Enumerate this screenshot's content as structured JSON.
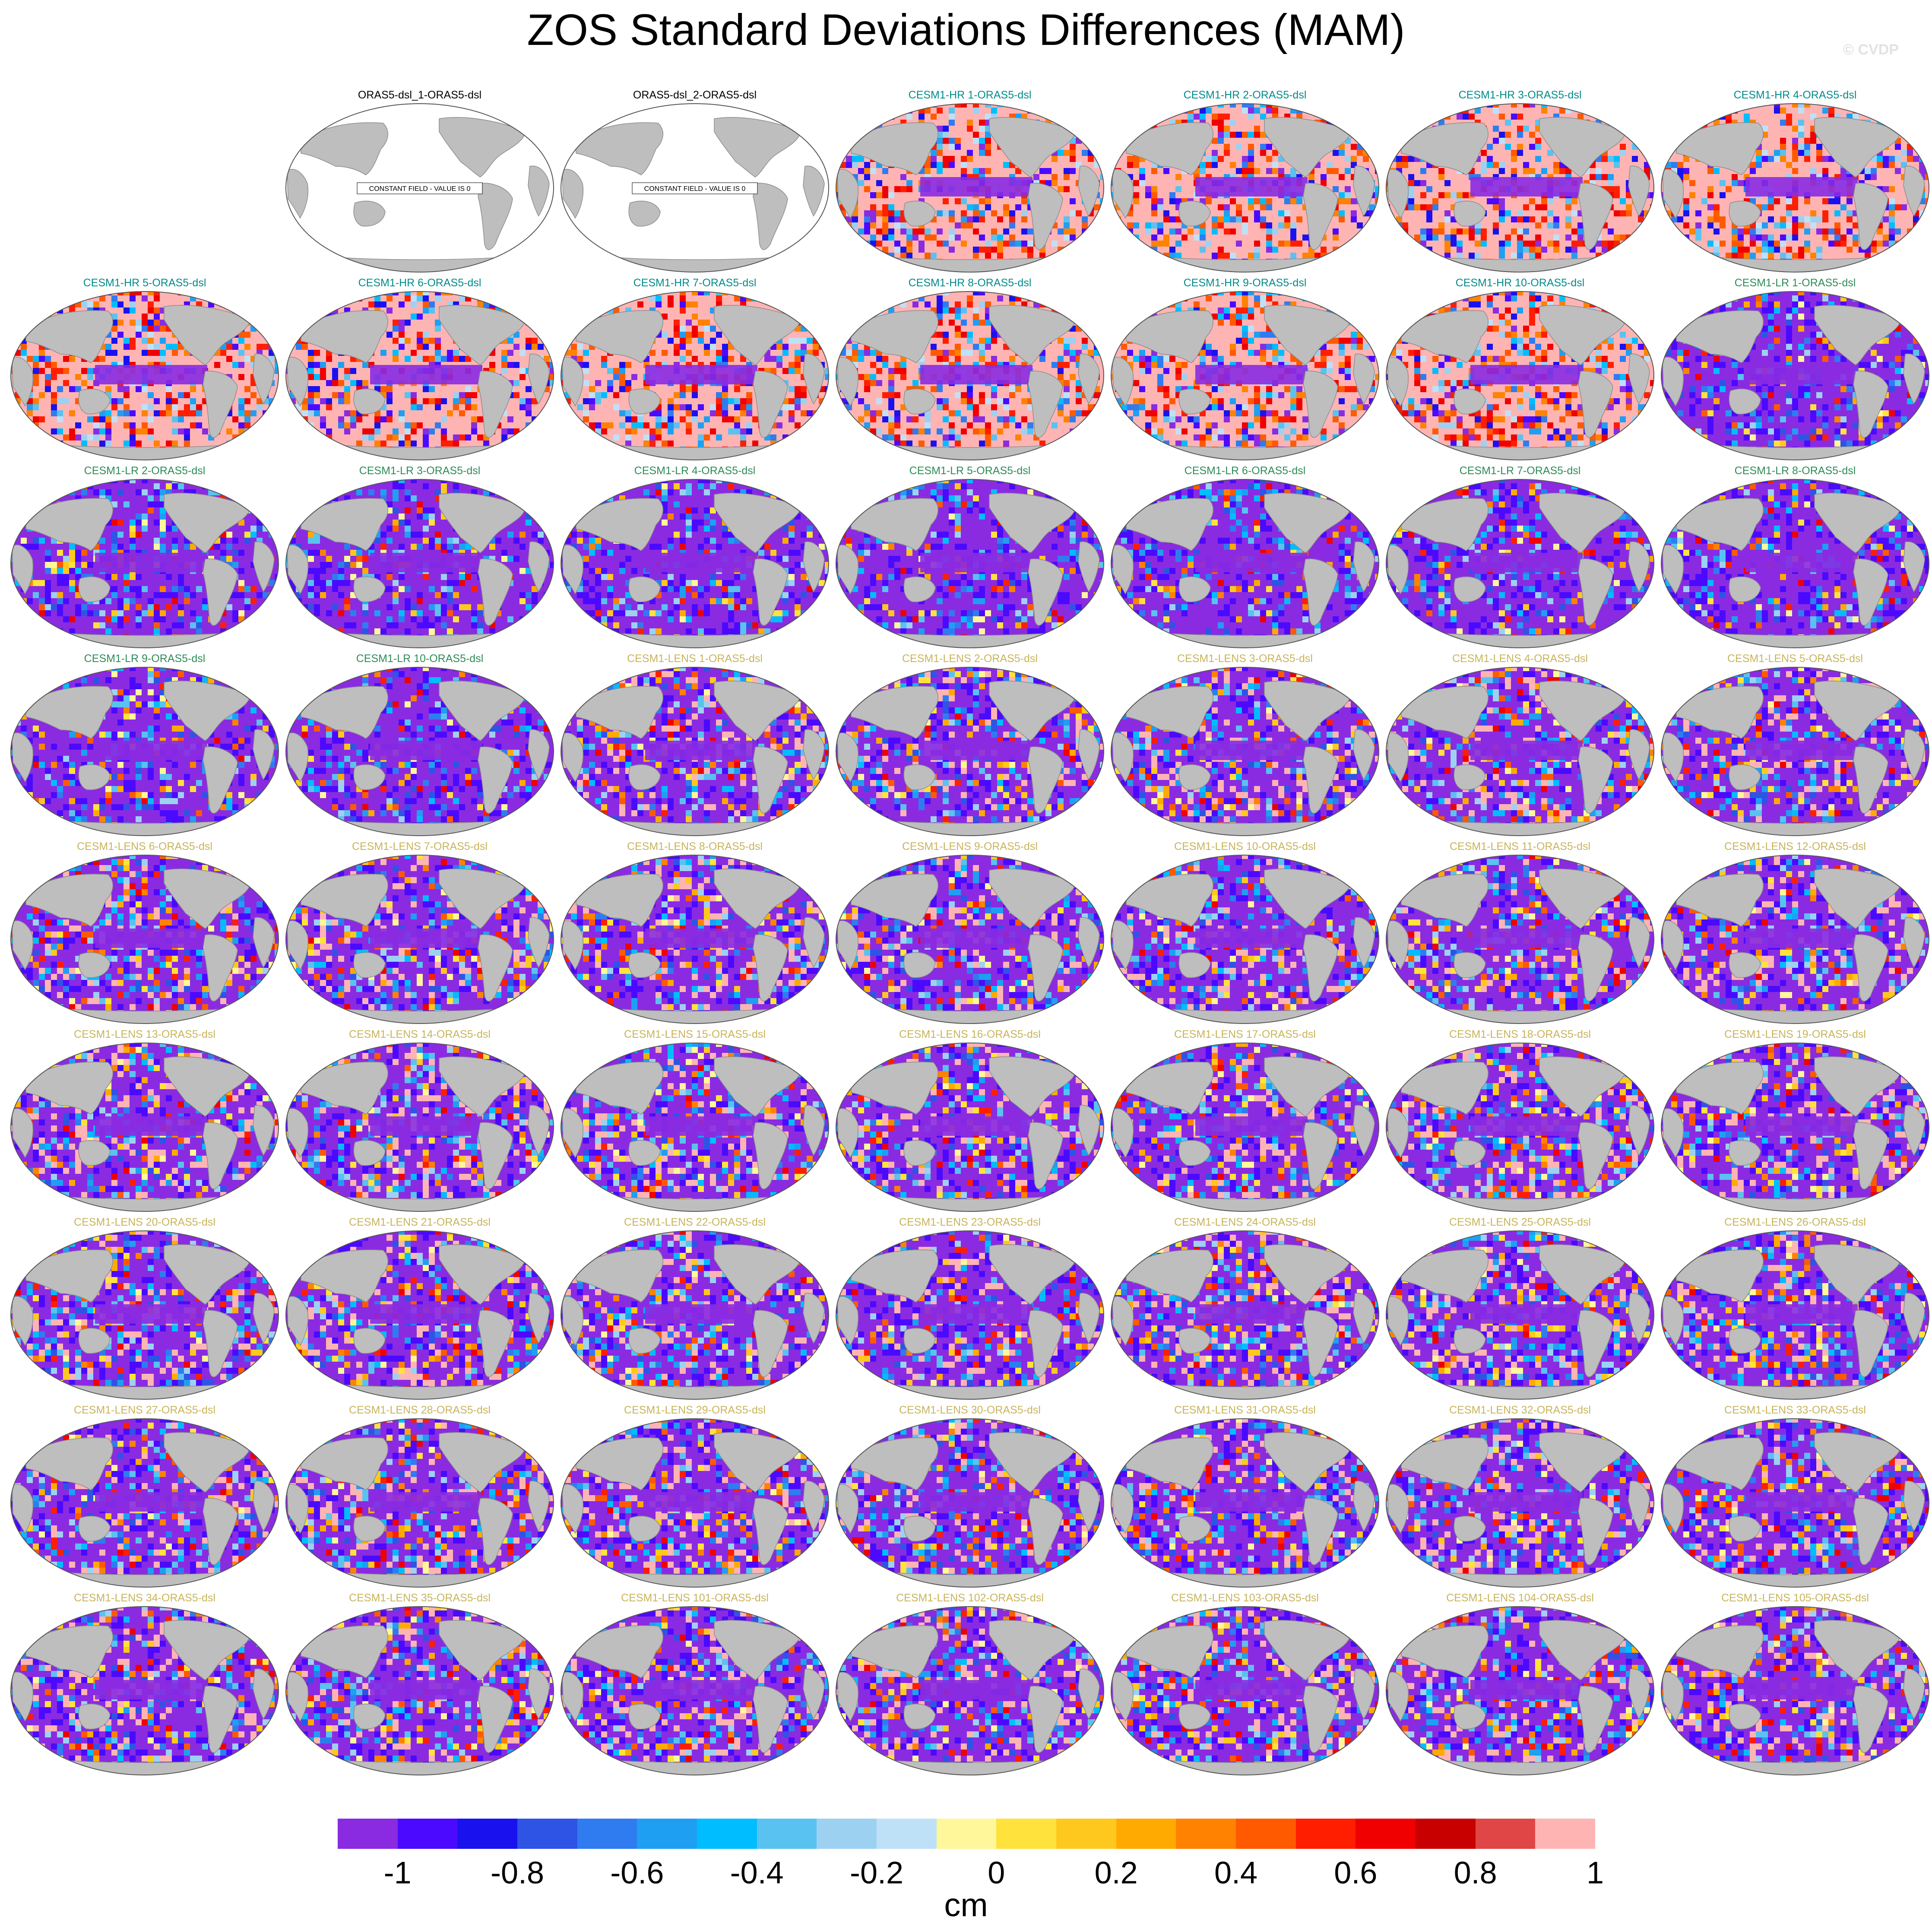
{
  "title": "ZOS Standard Deviations Differences (MAM)",
  "watermark": "© CVDP",
  "constant_field_note": "CONSTANT FIELD - VALUE IS 0",
  "colors": {
    "ocean_null": "#ffffff",
    "land": "#bebebe",
    "title_obs": "#000000",
    "title_hr": "#008b8b",
    "title_lr": "#2e8b57",
    "title_lens": "#c8b45a"
  },
  "colorbar": {
    "units": "cm",
    "boxes": [
      "#8a2be2",
      "#4b0aff",
      "#1a12ee",
      "#2e54e6",
      "#2f7cf0",
      "#1f9ff2",
      "#00bdff",
      "#5ac2f0",
      "#9dd1f2",
      "#bfe1f7",
      "#fff79a",
      "#ffe23c",
      "#ffc81e",
      "#ffaa00",
      "#ff8200",
      "#ff5a00",
      "#ff1e00",
      "#f00000",
      "#c80000",
      "#e04646",
      "#ffb4b4"
    ],
    "labels": [
      "-1",
      "-0.8",
      "-0.6",
      "-0.4",
      "-0.2",
      "0",
      "0.2",
      "0.4",
      "0.6",
      "0.8",
      "1"
    ]
  },
  "panels": [
    {
      "title": "ORAS5-dsl_1-ORAS5-dsl",
      "kind": "obs",
      "constant": true
    },
    {
      "title": "ORAS5-dsl_2-ORAS5-dsl",
      "kind": "obs",
      "constant": true
    },
    {
      "title": "CESM1-HR 1-ORAS5-dsl",
      "kind": "hr"
    },
    {
      "title": "CESM1-HR 2-ORAS5-dsl",
      "kind": "hr"
    },
    {
      "title": "CESM1-HR 3-ORAS5-dsl",
      "kind": "hr"
    },
    {
      "title": "CESM1-HR 4-ORAS5-dsl",
      "kind": "hr"
    },
    {
      "title": "CESM1-HR 5-ORAS5-dsl",
      "kind": "hr"
    },
    {
      "title": "CESM1-HR 6-ORAS5-dsl",
      "kind": "hr"
    },
    {
      "title": "CESM1-HR 7-ORAS5-dsl",
      "kind": "hr"
    },
    {
      "title": "CESM1-HR 8-ORAS5-dsl",
      "kind": "hr"
    },
    {
      "title": "CESM1-HR 9-ORAS5-dsl",
      "kind": "hr"
    },
    {
      "title": "CESM1-HR 10-ORAS5-dsl",
      "kind": "hr"
    },
    {
      "title": "CESM1-LR 1-ORAS5-dsl",
      "kind": "lr"
    },
    {
      "title": "CESM1-LR 2-ORAS5-dsl",
      "kind": "lr"
    },
    {
      "title": "CESM1-LR 3-ORAS5-dsl",
      "kind": "lr"
    },
    {
      "title": "CESM1-LR 4-ORAS5-dsl",
      "kind": "lr"
    },
    {
      "title": "CESM1-LR 5-ORAS5-dsl",
      "kind": "lr"
    },
    {
      "title": "CESM1-LR 6-ORAS5-dsl",
      "kind": "lr"
    },
    {
      "title": "CESM1-LR 7-ORAS5-dsl",
      "kind": "lr"
    },
    {
      "title": "CESM1-LR 8-ORAS5-dsl",
      "kind": "lr"
    },
    {
      "title": "CESM1-LR 9-ORAS5-dsl",
      "kind": "lr"
    },
    {
      "title": "CESM1-LR 10-ORAS5-dsl",
      "kind": "lr"
    },
    {
      "title": "CESM1-LENS 1-ORAS5-dsl",
      "kind": "lens"
    },
    {
      "title": "CESM1-LENS 2-ORAS5-dsl",
      "kind": "lens"
    },
    {
      "title": "CESM1-LENS 3-ORAS5-dsl",
      "kind": "lens"
    },
    {
      "title": "CESM1-LENS 4-ORAS5-dsl",
      "kind": "lens"
    },
    {
      "title": "CESM1-LENS 5-ORAS5-dsl",
      "kind": "lens"
    },
    {
      "title": "CESM1-LENS 6-ORAS5-dsl",
      "kind": "lens"
    },
    {
      "title": "CESM1-LENS 7-ORAS5-dsl",
      "kind": "lens"
    },
    {
      "title": "CESM1-LENS 8-ORAS5-dsl",
      "kind": "lens"
    },
    {
      "title": "CESM1-LENS 9-ORAS5-dsl",
      "kind": "lens"
    },
    {
      "title": "CESM1-LENS 10-ORAS5-dsl",
      "kind": "lens"
    },
    {
      "title": "CESM1-LENS 11-ORAS5-dsl",
      "kind": "lens"
    },
    {
      "title": "CESM1-LENS 12-ORAS5-dsl",
      "kind": "lens"
    },
    {
      "title": "CESM1-LENS 13-ORAS5-dsl",
      "kind": "lens"
    },
    {
      "title": "CESM1-LENS 14-ORAS5-dsl",
      "kind": "lens"
    },
    {
      "title": "CESM1-LENS 15-ORAS5-dsl",
      "kind": "lens"
    },
    {
      "title": "CESM1-LENS 16-ORAS5-dsl",
      "kind": "lens"
    },
    {
      "title": "CESM1-LENS 17-ORAS5-dsl",
      "kind": "lens"
    },
    {
      "title": "CESM1-LENS 18-ORAS5-dsl",
      "kind": "lens"
    },
    {
      "title": "CESM1-LENS 19-ORAS5-dsl",
      "kind": "lens"
    },
    {
      "title": "CESM1-LENS 20-ORAS5-dsl",
      "kind": "lens"
    },
    {
      "title": "CESM1-LENS 21-ORAS5-dsl",
      "kind": "lens"
    },
    {
      "title": "CESM1-LENS 22-ORAS5-dsl",
      "kind": "lens"
    },
    {
      "title": "CESM1-LENS 23-ORAS5-dsl",
      "kind": "lens"
    },
    {
      "title": "CESM1-LENS 24-ORAS5-dsl",
      "kind": "lens"
    },
    {
      "title": "CESM1-LENS 25-ORAS5-dsl",
      "kind": "lens"
    },
    {
      "title": "CESM1-LENS 26-ORAS5-dsl",
      "kind": "lens"
    },
    {
      "title": "CESM1-LENS 27-ORAS5-dsl",
      "kind": "lens"
    },
    {
      "title": "CESM1-LENS 28-ORAS5-dsl",
      "kind": "lens"
    },
    {
      "title": "CESM1-LENS 29-ORAS5-dsl",
      "kind": "lens"
    },
    {
      "title": "CESM1-LENS 30-ORAS5-dsl",
      "kind": "lens"
    },
    {
      "title": "CESM1-LENS 31-ORAS5-dsl",
      "kind": "lens"
    },
    {
      "title": "CESM1-LENS 32-ORAS5-dsl",
      "kind": "lens"
    },
    {
      "title": "CESM1-LENS 33-ORAS5-dsl",
      "kind": "lens"
    },
    {
      "title": "CESM1-LENS 34-ORAS5-dsl",
      "kind": "lens"
    },
    {
      "title": "CESM1-LENS 35-ORAS5-dsl",
      "kind": "lens"
    },
    {
      "title": "CESM1-LENS 101-ORAS5-dsl",
      "kind": "lens"
    },
    {
      "title": "CESM1-LENS 102-ORAS5-dsl",
      "kind": "lens"
    },
    {
      "title": "CESM1-LENS 103-ORAS5-dsl",
      "kind": "lens"
    },
    {
      "title": "CESM1-LENS 104-ORAS5-dsl",
      "kind": "lens"
    },
    {
      "title": "CESM1-LENS 105-ORAS5-dsl",
      "kind": "lens"
    }
  ]
}
